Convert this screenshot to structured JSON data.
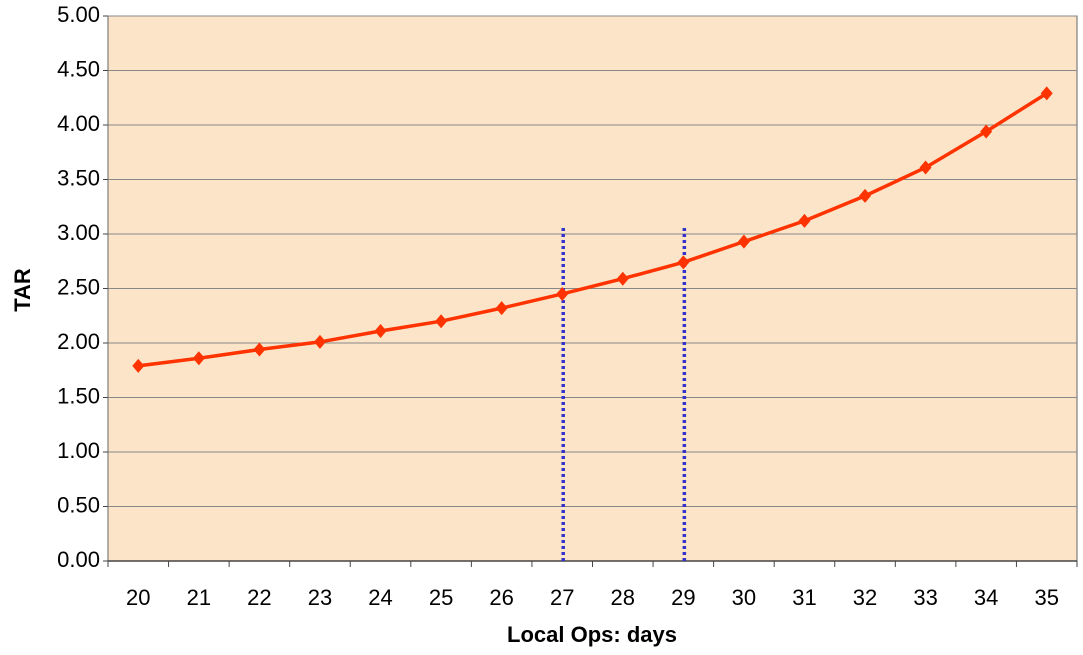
{
  "chart_data": {
    "type": "line",
    "x_label": "Local Ops: days",
    "y_label": "TAR",
    "categories": [
      "20",
      "21",
      "22",
      "23",
      "24",
      "25",
      "26",
      "27",
      "28",
      "29",
      "30",
      "31",
      "32",
      "33",
      "34",
      "35"
    ],
    "series": [
      {
        "name": "TAR",
        "color": "#ff3300",
        "values": [
          1.79,
          1.86,
          1.94,
          2.01,
          2.11,
          2.2,
          2.32,
          2.45,
          2.59,
          2.74,
          2.93,
          3.12,
          3.35,
          3.61,
          3.94,
          4.29
        ]
      }
    ],
    "ylim": [
      0,
      5
    ],
    "yticks": [
      {
        "value": 0,
        "label": "0.00"
      },
      {
        "value": 0.5,
        "label": "0.50"
      },
      {
        "value": 1,
        "label": "1.00"
      },
      {
        "value": 1.5,
        "label": "1.50"
      },
      {
        "value": 2,
        "label": "2.00"
      },
      {
        "value": 2.5,
        "label": "2.50"
      },
      {
        "value": 3,
        "label": "3.00"
      },
      {
        "value": 3.5,
        "label": "3.50"
      },
      {
        "value": 4,
        "label": "4.00"
      },
      {
        "value": 4.5,
        "label": "4.50"
      },
      {
        "value": 5,
        "label": "5.00"
      }
    ],
    "grid": true,
    "background": "#fce4c9",
    "reference_lines": [
      {
        "category": "27",
        "ymax": 3.06,
        "color": "#3333cc"
      },
      {
        "category": "29",
        "ymax": 3.06,
        "color": "#3333cc"
      }
    ]
  }
}
